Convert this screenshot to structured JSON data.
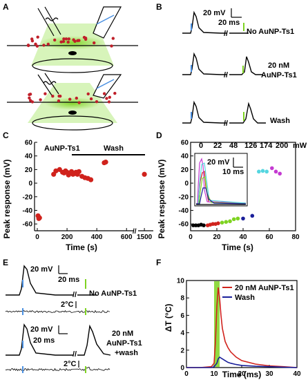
{
  "panels": {
    "A": {
      "label": "A"
    },
    "B": {
      "label": "B",
      "scale_v": "20 mV",
      "scale_t": "20 ms",
      "conditions": [
        "No AuNP-Ts1",
        "20 nM\nAuNP-Ts1",
        "Wash"
      ]
    },
    "C": {
      "label": "C",
      "annot_drug": "AuNP-Ts1",
      "annot_wash": "Wash",
      "xlabel": "Time (s)",
      "ylabel": "Peak response (mV)"
    },
    "D": {
      "label": "D",
      "unit": "mW",
      "inset_scale_v": "20 mV",
      "inset_scale_t": "10 ms",
      "xlabel": "Time (s)",
      "ylabel": "Peak response (mV)"
    },
    "E": {
      "label": "E",
      "scale_v": "20 mV",
      "scale_t": "20 ms",
      "temp_scale": "2°C",
      "conditions": [
        "No AuNP-Ts1",
        "20 nM\nAuNP-Ts1\n+wash"
      ]
    },
    "F": {
      "label": "F",
      "xlabel": "Time (ms)",
      "ylabel": "ΔT (°C)"
    }
  },
  "colors": {
    "laser_green": "#7ed321",
    "blue_pulse": "#4a90e2",
    "red": "#d0221c",
    "navy": "#1a1f9a"
  },
  "chart_data": [
    {
      "id": "C",
      "type": "scatter",
      "xlabel": "Time (s)",
      "ylabel": "Peak response (mV)",
      "xticks": [
        0,
        200,
        400,
        600,
        1500
      ],
      "yticks": [
        60,
        40,
        20,
        0,
        -20,
        -40,
        -60
      ],
      "ylim": [
        -70,
        60
      ],
      "axis_break": [
        650,
        1450
      ],
      "series": [
        {
          "color": "#d0221c",
          "x": [
            5,
            10,
            15,
            110,
            125,
            150,
            170,
            180,
            190,
            200,
            210,
            220,
            230,
            240,
            250,
            260,
            270,
            280,
            300,
            320,
            340,
            360,
            450,
            460,
            1500
          ],
          "y": [
            -48,
            -52,
            -51,
            13,
            18,
            20,
            16,
            15,
            18,
            16,
            12,
            15,
            17,
            13,
            14,
            16,
            13,
            17,
            10,
            8,
            7,
            5,
            30,
            31,
            13
          ]
        }
      ]
    },
    {
      "id": "D",
      "type": "scatter",
      "xlabel": "Time (s)",
      "ylabel": "Peak response (mV)",
      "xlim": [
        0,
        80
      ],
      "ylim": [
        -70,
        60
      ],
      "xticks": [
        0,
        20,
        40,
        60,
        80
      ],
      "yticks": [
        60,
        40,
        20,
        0,
        -20,
        -40,
        -60
      ],
      "series": [
        {
          "name": "0",
          "color": "#000000",
          "x": [
            2,
            4,
            6,
            8,
            10
          ],
          "y": [
            -62,
            -62,
            -62,
            -61,
            -62
          ]
        },
        {
          "name": "22",
          "color": "#d0221c",
          "x": [
            13,
            15,
            17,
            19,
            21
          ],
          "y": [
            -62,
            -61,
            -60,
            -60,
            -59
          ]
        },
        {
          "name": "48",
          "color": "#7ed321",
          "x": [
            24,
            27,
            30,
            33,
            36
          ],
          "y": [
            -58,
            -57,
            -56,
            -53,
            -52
          ]
        },
        {
          "name": "126",
          "color": "#1a1f9a",
          "x": [
            40,
            47
          ],
          "y": [
            -52,
            -48
          ]
        },
        {
          "name": "174",
          "color": "#55d6e0",
          "x": [
            52,
            55,
            58
          ],
          "y": [
            17,
            18,
            17
          ]
        },
        {
          "name": "200",
          "color": "#c43ad1",
          "x": [
            62,
            65,
            68
          ],
          "y": [
            22,
            17,
            14
          ]
        }
      ]
    },
    {
      "id": "F",
      "type": "line",
      "xlabel": "Time (ms)",
      "ylabel": "ΔT (°C)",
      "xlim": [
        0,
        40
      ],
      "ylim": [
        0,
        10
      ],
      "xticks": [
        0,
        10,
        20,
        30,
        40
      ],
      "yticks": [
        0,
        2,
        4,
        6,
        8,
        10
      ],
      "laser_pulse_ms": [
        10,
        12
      ],
      "series": [
        {
          "name": "20 nM AuNP-Ts1",
          "color": "#d0221c",
          "x": [
            0,
            5,
            9,
            10,
            10.5,
            11,
            11.5,
            12,
            12.5,
            13,
            14,
            15,
            16,
            18,
            20,
            25,
            30,
            35,
            40
          ],
          "y": [
            0,
            0,
            0.1,
            0.5,
            3,
            7,
            9.2,
            8,
            6,
            4.5,
            3,
            2.3,
            1.8,
            1.2,
            0.8,
            0.4,
            0.2,
            0.1,
            0
          ]
        },
        {
          "name": "Wash",
          "color": "#1a1f9a",
          "x": [
            0,
            5,
            9,
            10,
            11,
            11.5,
            12,
            13,
            14,
            15,
            16,
            18,
            20,
            25,
            30,
            35,
            40
          ],
          "y": [
            0,
            0,
            0,
            0.1,
            0.5,
            1,
            1.2,
            1,
            0.8,
            0.6,
            0.5,
            0.35,
            0.25,
            0.15,
            0.1,
            0.05,
            0
          ]
        }
      ]
    }
  ]
}
